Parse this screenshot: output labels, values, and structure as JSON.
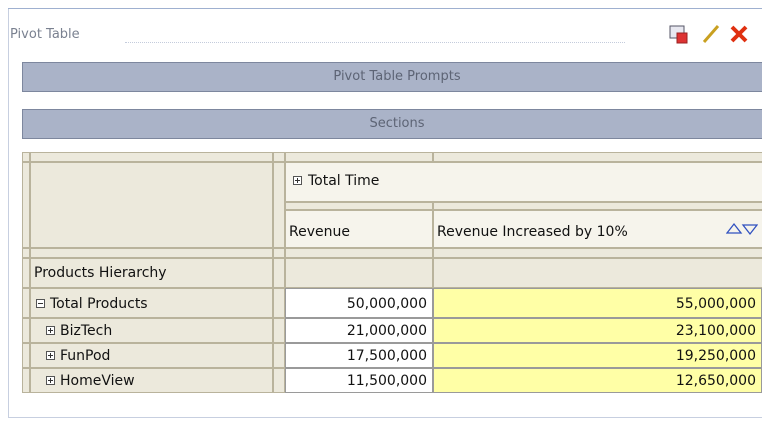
{
  "panel": {
    "title": "Pivot Table"
  },
  "prompts": "Pivot Table Prompts",
  "sections": "Sections",
  "table": {
    "column_header": "Total Time",
    "measures": [
      "Revenue",
      "Revenue Increased by 10%"
    ],
    "row_header": "Products Hierarchy",
    "rows": [
      {
        "label": "Total Products",
        "values": [
          "50,000,000",
          "55,000,000"
        ]
      },
      {
        "label": "BizTech",
        "values": [
          "21,000,000",
          "23,100,000"
        ]
      },
      {
        "label": "FunPod",
        "values": [
          "17,500,000",
          "19,250,000"
        ]
      },
      {
        "label": "HomeView",
        "values": [
          "11,500,000",
          "12,650,000"
        ]
      }
    ]
  }
}
